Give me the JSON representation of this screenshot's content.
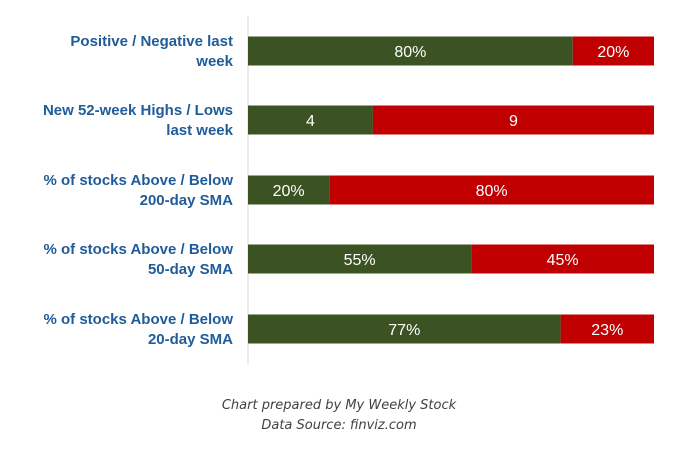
{
  "chart_data": {
    "type": "bar",
    "orientation": "horizontal",
    "stacked": true,
    "normalized_to_100_percent": true,
    "categories": [
      [
        "Positive / Negative last",
        "week"
      ],
      [
        "New 52-week Highs / Lows",
        "last week"
      ],
      [
        "% of stocks Above / Below",
        "200-day SMA"
      ],
      [
        "% of stocks Above / Below",
        "50-day SMA"
      ],
      [
        "% of stocks Above / Below",
        "20-day SMA"
      ]
    ],
    "series": [
      {
        "values": [
          80,
          4,
          20,
          55,
          77
        ],
        "labels": [
          "80%",
          "4",
          "20%",
          "55%",
          "77%"
        ]
      },
      {
        "values": [
          20,
          9,
          80,
          45,
          23
        ],
        "labels": [
          "20%",
          "9",
          "80%",
          "45%",
          "23%"
        ]
      }
    ],
    "colors": {
      "positive": "#3B5323",
      "negative": "#C00000",
      "category_text": "#1F5C99",
      "axis_line": "#D9D9D9"
    },
    "grid": false,
    "legend": "none"
  },
  "footnote": {
    "line1": "Chart prepared by My Weekly Stock",
    "line2": "Data Source: finviz.com"
  }
}
